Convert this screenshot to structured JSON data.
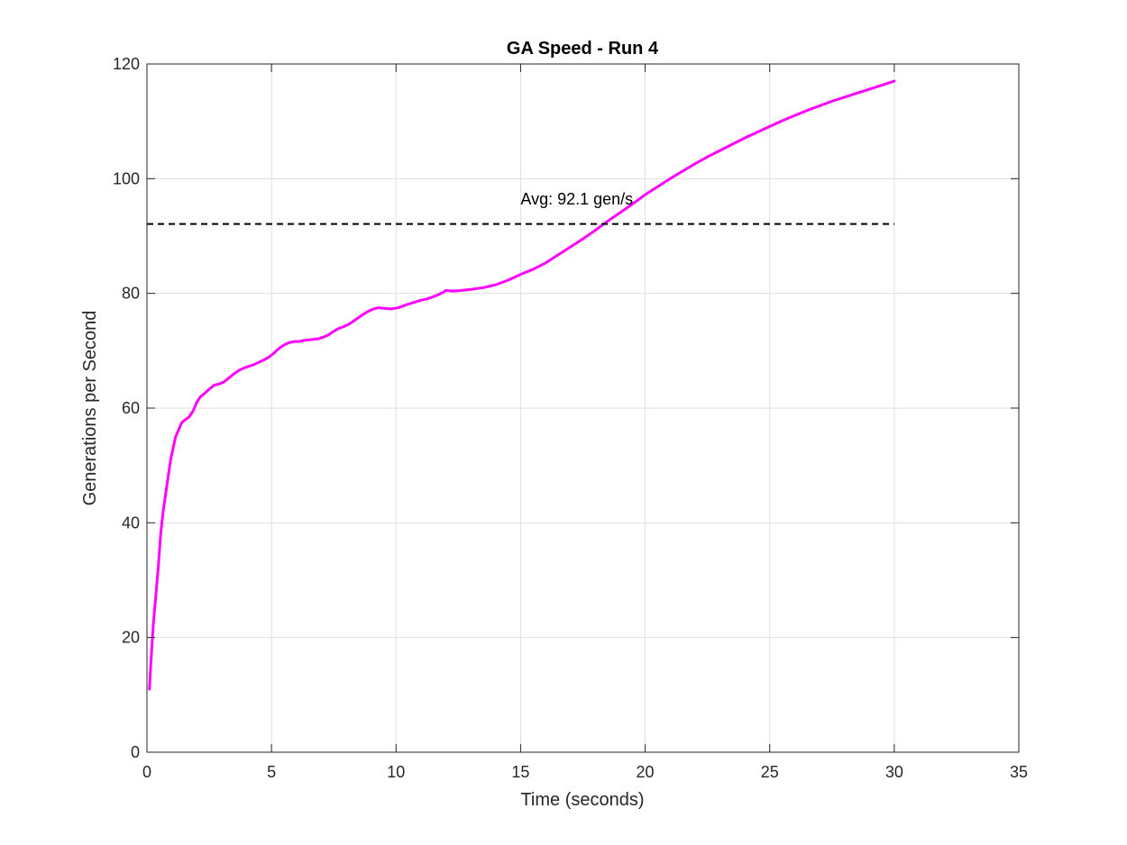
{
  "chart_data": {
    "type": "line",
    "title": "GA Speed - Run 4",
    "xlabel": "Time (seconds)",
    "ylabel": "Generations per Second",
    "xlim": [
      0,
      35
    ],
    "ylim": [
      0,
      120
    ],
    "xticks": [
      "0",
      "5",
      "10",
      "15",
      "20",
      "25",
      "30",
      "35"
    ],
    "yticks": [
      "0",
      "20",
      "40",
      "60",
      "80",
      "100",
      "120"
    ],
    "grid": true,
    "series": [
      {
        "color": "#ff00ff",
        "x": [
          0.1,
          0.15,
          0.25,
          0.35,
          0.45,
          0.55,
          0.65,
          0.75,
          0.85,
          0.95,
          1.05,
          1.15,
          1.25,
          1.4,
          1.55,
          1.7,
          1.85,
          2.0,
          2.15,
          2.3,
          2.5,
          2.7,
          2.9,
          3.1,
          3.3,
          3.5,
          3.7,
          3.9,
          4.1,
          4.3,
          4.5,
          4.7,
          4.9,
          5.1,
          5.3,
          5.5,
          5.7,
          5.9,
          6.1,
          6.3,
          6.5,
          6.7,
          6.9,
          7.1,
          7.3,
          7.5,
          7.7,
          7.9,
          8.1,
          8.3,
          8.5,
          8.7,
          8.9,
          9.1,
          9.3,
          9.5,
          9.8,
          10.1,
          10.4,
          10.7,
          11.0,
          11.3,
          11.6,
          11.9,
          12.0,
          12.3,
          12.6,
          13.0,
          13.5,
          14.0,
          14.5,
          15.0,
          15.5,
          16.0,
          16.5,
          17.0,
          17.5,
          18.0,
          18.5,
          19.0,
          19.5,
          20.0,
          20.5,
          21.0,
          21.5,
          22.0,
          22.5,
          23.0,
          23.5,
          24.0,
          24.5,
          25.0,
          25.5,
          26.0,
          26.5,
          27.0,
          27.5,
          28.0,
          28.5,
          29.0,
          29.5,
          30.0
        ],
        "y": [
          11,
          15,
          22,
          27,
          32,
          38,
          42,
          45,
          48,
          51,
          53,
          55,
          56,
          57.5,
          58,
          58.5,
          59.5,
          61,
          62,
          62.5,
          63.3,
          64,
          64.2,
          64.6,
          65.3,
          66,
          66.6,
          67,
          67.3,
          67.6,
          68,
          68.4,
          68.9,
          69.6,
          70.4,
          71,
          71.4,
          71.6,
          71.6,
          71.8,
          71.9,
          72,
          72.1,
          72.4,
          72.8,
          73.4,
          73.9,
          74.2,
          74.6,
          75.2,
          75.8,
          76.4,
          76.9,
          77.3,
          77.5,
          77.4,
          77.3,
          77.5,
          78,
          78.4,
          78.8,
          79.1,
          79.6,
          80.2,
          80.5,
          80.4,
          80.5,
          80.7,
          81,
          81.5,
          82.3,
          83.3,
          84.2,
          85.3,
          86.7,
          88.1,
          89.5,
          91,
          92.6,
          94.1,
          95.6,
          97.2,
          98.6,
          100,
          101.3,
          102.6,
          103.8,
          104.9,
          106,
          107.1,
          108.1,
          109.1,
          110.1,
          111,
          111.9,
          112.7,
          113.5,
          114.2,
          114.9,
          115.6,
          116.3,
          117
        ]
      },
      {
        "color": "#000000",
        "style": "dashed",
        "x": [
          0,
          30
        ],
        "y": [
          92.1,
          92.1
        ]
      }
    ],
    "annotations": [
      {
        "text": "Avg: 92.1 gen/s",
        "x": 15,
        "y": 95.5
      }
    ]
  }
}
